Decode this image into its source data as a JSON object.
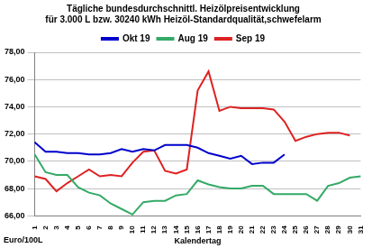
{
  "chart_data": {
    "type": "line",
    "title": [
      "Tägliche bundesdurchschnittl. Heizölpreisentwicklung",
      "für 3.000 L bzw. 30240 kWh Heizöl-Standardqualität,schwefelarm"
    ],
    "x_label": "Kalendertag",
    "y_label": "Euro/100L",
    "categories": [
      "1",
      "2",
      "3",
      "4",
      "5",
      "6",
      "7",
      "8",
      "9",
      "10",
      "11",
      "12",
      "13",
      "14",
      "15",
      "16",
      "17",
      "18",
      "19",
      "20",
      "21",
      "22",
      "23",
      "24",
      "25",
      "26",
      "27",
      "28",
      "29",
      "30",
      "31"
    ],
    "series": [
      {
        "name": "Okt 19",
        "color": "#0000cc",
        "values": [
          71.4,
          70.7,
          70.7,
          70.6,
          70.6,
          70.5,
          70.5,
          70.6,
          70.9,
          70.7,
          70.9,
          70.8,
          71.2,
          71.2,
          71.2,
          71.0,
          70.6,
          70.4,
          70.2,
          70.4,
          69.8,
          69.9,
          69.9,
          70.5,
          null,
          null,
          null,
          null,
          null,
          null,
          null
        ]
      },
      {
        "name": "Aug 19",
        "color": "#33aa66",
        "values": [
          70.5,
          69.2,
          69.0,
          69.0,
          68.1,
          67.7,
          67.5,
          66.9,
          66.5,
          66.1,
          67.0,
          67.1,
          67.1,
          67.5,
          67.6,
          68.6,
          68.3,
          68.1,
          68.0,
          68.0,
          68.2,
          68.2,
          67.6,
          67.6,
          67.6,
          67.6,
          67.1,
          68.2,
          68.4,
          68.8,
          68.9
        ]
      },
      {
        "name": "Sep 19",
        "color": "#dd2222",
        "values": [
          68.9,
          68.7,
          67.8,
          68.4,
          68.9,
          69.4,
          68.9,
          69.0,
          68.9,
          69.9,
          70.7,
          70.8,
          69.3,
          69.1,
          69.4,
          75.2,
          76.6,
          73.7,
          74.0,
          73.9,
          73.9,
          73.9,
          73.8,
          72.9,
          71.5,
          71.8,
          72.0,
          72.1,
          72.1,
          71.9,
          null
        ]
      }
    ],
    "ylim": [
      66,
      78
    ],
    "yticks": [
      {
        "value": 66,
        "label": "66,00"
      },
      {
        "value": 68,
        "label": "68,00"
      },
      {
        "value": 70,
        "label": "70,00"
      },
      {
        "value": 72,
        "label": "72,00"
      },
      {
        "value": 74,
        "label": "74,00"
      },
      {
        "value": 76,
        "label": "76,00"
      },
      {
        "value": 78,
        "label": "78,00"
      }
    ],
    "grid": true,
    "legend": "top"
  }
}
